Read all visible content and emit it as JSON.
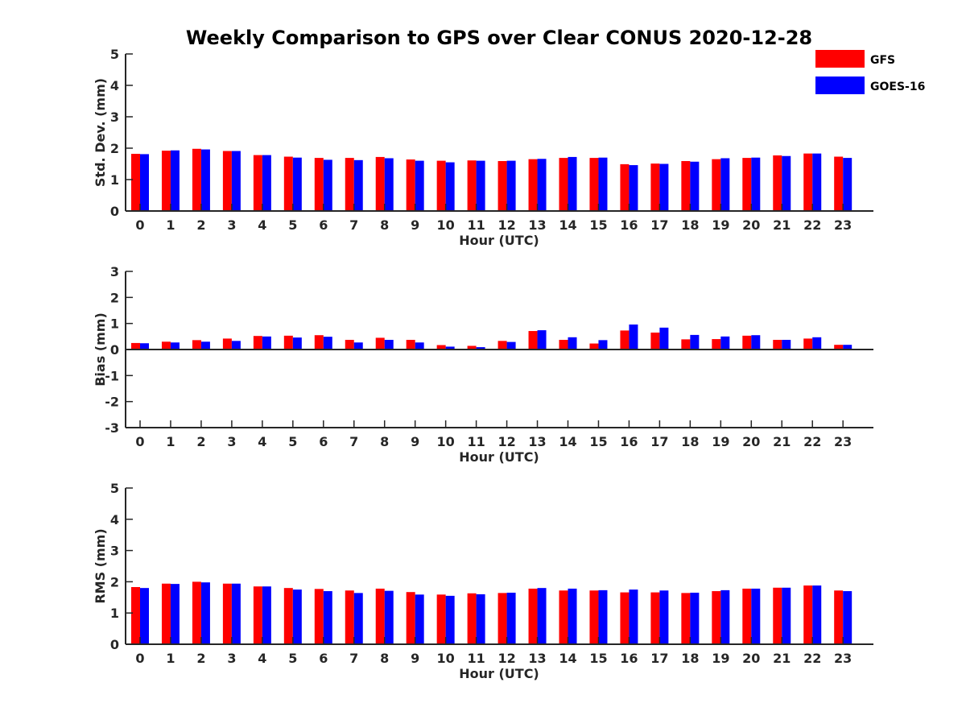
{
  "title": "Weekly Comparison to GPS over Clear CONUS 2020-12-28",
  "legend": {
    "placement": "top-right",
    "entries": [
      {
        "label": "GFS",
        "color": "#ff0000"
      },
      {
        "label": "GOES-16",
        "color": "#0000ff"
      }
    ]
  },
  "chart_data": [
    {
      "type": "bar",
      "xlabel": "Hour (UTC)",
      "ylabel": "Std. Dev. (mm)",
      "ylim": [
        0,
        5
      ],
      "yticks": [
        "0",
        "1",
        "2",
        "3",
        "4",
        "5"
      ],
      "categories": [
        "0",
        "1",
        "2",
        "3",
        "4",
        "5",
        "6",
        "7",
        "8",
        "9",
        "10",
        "11",
        "12",
        "13",
        "14",
        "15",
        "16",
        "17",
        "18",
        "19",
        "20",
        "21",
        "22",
        "23"
      ],
      "series": [
        {
          "name": "GFS",
          "color": "#ff0000",
          "values": [
            1.82,
            1.92,
            1.98,
            1.91,
            1.78,
            1.73,
            1.69,
            1.69,
            1.72,
            1.64,
            1.6,
            1.61,
            1.59,
            1.65,
            1.69,
            1.69,
            1.49,
            1.51,
            1.59,
            1.65,
            1.69,
            1.77,
            1.83,
            1.73
          ]
        },
        {
          "name": "GOES-16",
          "color": "#0000ff",
          "values": [
            1.81,
            1.93,
            1.96,
            1.91,
            1.78,
            1.7,
            1.63,
            1.62,
            1.68,
            1.6,
            1.55,
            1.6,
            1.6,
            1.66,
            1.72,
            1.7,
            1.46,
            1.5,
            1.57,
            1.68,
            1.7,
            1.75,
            1.83,
            1.69
          ]
        }
      ]
    },
    {
      "type": "bar",
      "xlabel": "Hour (UTC)",
      "ylabel": "Bias (mm)",
      "ylim": [
        -3,
        3
      ],
      "yticks": [
        "-3",
        "-2",
        "-1",
        "0",
        "1",
        "2",
        "3"
      ],
      "categories": [
        "0",
        "1",
        "2",
        "3",
        "4",
        "5",
        "6",
        "7",
        "8",
        "9",
        "10",
        "11",
        "12",
        "13",
        "14",
        "15",
        "16",
        "17",
        "18",
        "19",
        "20",
        "21",
        "22",
        "23"
      ],
      "series": [
        {
          "name": "GFS",
          "color": "#ff0000",
          "values": [
            0.25,
            0.3,
            0.36,
            0.42,
            0.52,
            0.53,
            0.55,
            0.37,
            0.45,
            0.37,
            0.17,
            0.14,
            0.33,
            0.71,
            0.37,
            0.23,
            0.73,
            0.65,
            0.39,
            0.4,
            0.53,
            0.37,
            0.42,
            0.18
          ]
        },
        {
          "name": "GOES-16",
          "color": "#0000ff",
          "values": [
            0.24,
            0.27,
            0.3,
            0.33,
            0.5,
            0.46,
            0.49,
            0.27,
            0.37,
            0.27,
            0.11,
            0.09,
            0.29,
            0.74,
            0.47,
            0.36,
            0.96,
            0.84,
            0.56,
            0.5,
            0.55,
            0.37,
            0.47,
            0.18
          ]
        }
      ]
    },
    {
      "type": "bar",
      "xlabel": "Hour (UTC)",
      "ylabel": "RMS (mm)",
      "ylim": [
        0,
        5
      ],
      "yticks": [
        "0",
        "1",
        "2",
        "3",
        "4",
        "5"
      ],
      "categories": [
        "0",
        "1",
        "2",
        "3",
        "4",
        "5",
        "6",
        "7",
        "8",
        "9",
        "10",
        "11",
        "12",
        "13",
        "14",
        "15",
        "16",
        "17",
        "18",
        "19",
        "20",
        "21",
        "22",
        "23"
      ],
      "series": [
        {
          "name": "GFS",
          "color": "#ff0000",
          "values": [
            1.83,
            1.94,
            2.0,
            1.94,
            1.85,
            1.8,
            1.77,
            1.72,
            1.78,
            1.67,
            1.59,
            1.63,
            1.64,
            1.78,
            1.72,
            1.72,
            1.66,
            1.66,
            1.64,
            1.7,
            1.78,
            1.81,
            1.88,
            1.72
          ]
        },
        {
          "name": "GOES-16",
          "color": "#0000ff",
          "values": [
            1.8,
            1.93,
            1.98,
            1.94,
            1.85,
            1.75,
            1.7,
            1.64,
            1.71,
            1.59,
            1.55,
            1.6,
            1.65,
            1.8,
            1.78,
            1.73,
            1.75,
            1.72,
            1.65,
            1.73,
            1.78,
            1.81,
            1.88,
            1.7
          ]
        }
      ]
    }
  ]
}
